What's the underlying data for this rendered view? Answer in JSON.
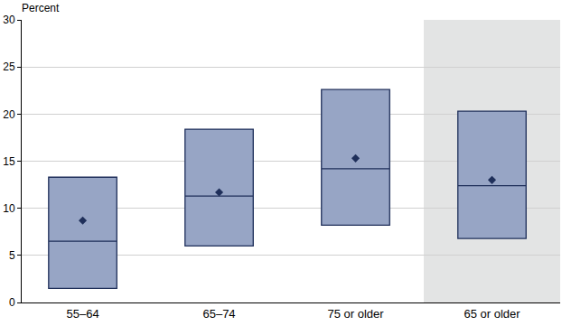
{
  "chart_data": {
    "type": "box",
    "y_label": "Percent",
    "categories": [
      "55–64",
      "65–74",
      "75 or older",
      "65 or older"
    ],
    "q1": [
      1.5,
      6.0,
      8.2,
      6.8
    ],
    "median": [
      6.5,
      11.3,
      14.2,
      12.4
    ],
    "q3": [
      13.3,
      18.4,
      22.6,
      20.3
    ],
    "mean": [
      8.7,
      11.7,
      15.3,
      13.0
    ],
    "color": "#97a5c5",
    "marker": "diamond",
    "ylim": [
      0,
      30
    ],
    "yticks": [
      0,
      5,
      10,
      15,
      20,
      25,
      30
    ],
    "grid": true
  }
}
